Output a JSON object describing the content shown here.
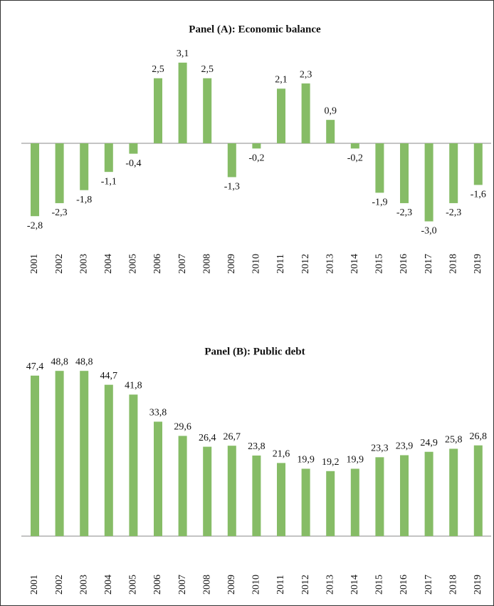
{
  "chart_data": [
    {
      "type": "bar",
      "title": "Panel (A): Economic balance",
      "color": "#86bc66",
      "categories": [
        "2001",
        "2002",
        "2003",
        "2004",
        "2005",
        "2006",
        "2007",
        "2008",
        "2009",
        "2010",
        "2011",
        "2012",
        "2013",
        "2014",
        "2015",
        "2016",
        "2017",
        "2018",
        "2019"
      ],
      "values": [
        -2.8,
        -2.3,
        -1.8,
        -1.1,
        -0.4,
        2.5,
        3.1,
        2.5,
        -1.3,
        -0.2,
        2.1,
        2.3,
        0.9,
        -0.2,
        -1.9,
        -2.3,
        -3.0,
        -2.3,
        -1.6
      ],
      "value_labels": [
        "-2,8",
        "-2,3",
        "-1,8",
        "-1,1",
        "-0,4",
        "2,5",
        "3,1",
        "2,5",
        "-1,3",
        "-0,2",
        "2,1",
        "2,3",
        "0,9",
        "-0,2",
        "-1,9",
        "-2,3",
        "-3,0",
        "-2,3",
        "-1,6"
      ]
    },
    {
      "type": "bar",
      "title": "Panel (B): Public debt",
      "color": "#86bc66",
      "categories": [
        "2001",
        "2002",
        "2003",
        "2004",
        "2005",
        "2006",
        "2007",
        "2008",
        "2009",
        "2010",
        "2011",
        "2012",
        "2013",
        "2014",
        "2015",
        "2016",
        "2017",
        "2018",
        "2019"
      ],
      "values": [
        47.4,
        48.8,
        48.8,
        44.7,
        41.8,
        33.8,
        29.6,
        26.4,
        26.7,
        23.8,
        21.6,
        19.9,
        19.2,
        19.9,
        23.3,
        23.9,
        24.9,
        25.8,
        26.8
      ],
      "value_labels": [
        "47,4",
        "48,8",
        "48,8",
        "44,7",
        "41,8",
        "33,8",
        "29,6",
        "26,4",
        "26,7",
        "23,8",
        "21,6",
        "19,9",
        "19,2",
        "19,9",
        "23,3",
        "23,9",
        "24,9",
        "25,8",
        "26,8"
      ]
    }
  ]
}
